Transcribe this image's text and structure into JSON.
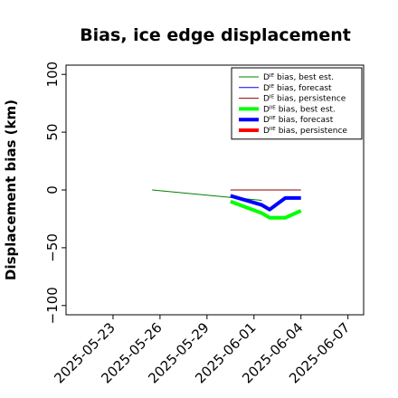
{
  "chart_data": {
    "type": "line",
    "title": "Bias, ice edge displacement",
    "xlabel": "",
    "ylabel": "Displacement bias (km)",
    "xlim": [
      "2025-05-20",
      "2025-06-08"
    ],
    "ylim": [
      -108,
      108
    ],
    "yticks": [
      100,
      50,
      0,
      -50,
      -100
    ],
    "ytick_labels": [
      "100",
      "50",
      "0",
      "−50",
      "−100"
    ],
    "xticks": [
      {
        "date": "2025-05-23",
        "label": "2025-05-23",
        "color": "#000000"
      },
      {
        "date": "2025-05-26",
        "label": "2025-05-26",
        "color": "#000000"
      },
      {
        "date": "2025-05-29",
        "label": "2025-05-29",
        "color": "#008000"
      },
      {
        "date": "2025-06-01",
        "label": "2025-06-01",
        "color": "#000000"
      },
      {
        "date": "2025-06-04",
        "label": "2025-06-04",
        "color": "#000000"
      },
      {
        "date": "2025-06-07",
        "label": "2025-06-07",
        "color": "#000000"
      }
    ],
    "grid": false,
    "legend_position": "top-right",
    "series": [
      {
        "name": "Dᴵᴱ bias, best est.",
        "color": "#008000",
        "width": 1,
        "points": [
          [
            "2025-05-25 12:00",
            0
          ],
          [
            "2025-06-01 12:00",
            -9
          ]
        ]
      },
      {
        "name": "Dᴵᴱ bias, forecast",
        "color": "#0000ff",
        "width": 1,
        "points": []
      },
      {
        "name": "Dᴵᴱ bias, persistence",
        "color": "#8b0000",
        "width": 1,
        "points": [
          [
            "2025-05-30 12:00",
            0
          ],
          [
            "2025-06-04 00:00",
            0
          ]
        ]
      },
      {
        "name": "Dᴵᴵᴱ bias, best est.",
        "color": "#00ff00",
        "width": 4,
        "points": [
          [
            "2025-05-30 12:00",
            -10
          ],
          [
            "2025-06-01 12:00",
            -20
          ],
          [
            "2025-06-02 00:00",
            -24
          ],
          [
            "2025-06-03 00:00",
            -24
          ],
          [
            "2025-06-04 00:00",
            -18
          ]
        ]
      },
      {
        "name": "Dᴵᴵᴱ bias, forecast",
        "color": "#0000ff",
        "width": 4,
        "points": [
          [
            "2025-05-30 12:00",
            -5
          ],
          [
            "2025-06-01 12:00",
            -13
          ],
          [
            "2025-06-02 00:00",
            -17
          ],
          [
            "2025-06-03 00:00",
            -7
          ],
          [
            "2025-06-04 00:00",
            -7
          ]
        ]
      },
      {
        "name": "Dᴵᴵᴱ bias, persistence",
        "color": "#ff0000",
        "width": 4,
        "points": []
      }
    ]
  }
}
